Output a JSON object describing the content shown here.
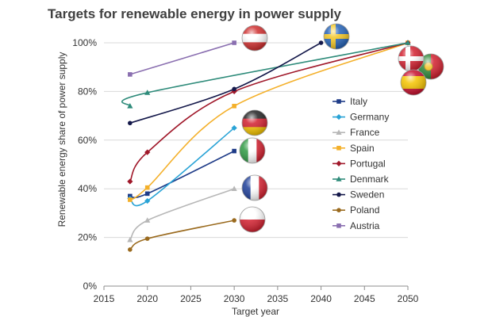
{
  "chart_data": {
    "type": "line",
    "title": "Targets for renewable energy in power supply",
    "xlabel": "Target year",
    "ylabel": "Renewable energy share of power supply",
    "xlim": [
      2015,
      2050
    ],
    "ylim": [
      0,
      100
    ],
    "x_ticks": [
      2015,
      2020,
      2025,
      2030,
      2035,
      2040,
      2045,
      2050
    ],
    "y_ticks": [
      0,
      20,
      40,
      60,
      80,
      100
    ],
    "y_tick_suffix": "%",
    "grid": "horizontal",
    "legend_position": "right",
    "series": [
      {
        "name": "Italy",
        "color": "#1f3c88",
        "marker": "square",
        "points": [
          [
            2018,
            37
          ],
          [
            2020,
            38
          ],
          [
            2030,
            55.5
          ]
        ],
        "flag": "italy-flag-icon"
      },
      {
        "name": "Germany",
        "color": "#29a3d6",
        "marker": "diamond",
        "points": [
          [
            2018,
            36
          ],
          [
            2020,
            35
          ],
          [
            2030,
            65
          ]
        ],
        "flag": "germany-flag-icon"
      },
      {
        "name": "France",
        "color": "#b7b7b7",
        "marker": "triangle",
        "points": [
          [
            2018,
            19
          ],
          [
            2020,
            27
          ],
          [
            2030,
            40
          ]
        ],
        "flag": "france-flag-icon"
      },
      {
        "name": "Spain",
        "color": "#f4b02a",
        "marker": "square",
        "points": [
          [
            2018,
            35.5
          ],
          [
            2020,
            40.5
          ],
          [
            2030,
            74
          ],
          [
            2050,
            100
          ]
        ],
        "flag": "spain-flag-icon"
      },
      {
        "name": "Portugal",
        "color": "#a0182a",
        "marker": "diamond",
        "points": [
          [
            2018,
            43
          ],
          [
            2020,
            55
          ],
          [
            2030,
            80
          ],
          [
            2050,
            100
          ]
        ],
        "flag": "portugal-flag-icon"
      },
      {
        "name": "Denmark",
        "color": "#2e8b7a",
        "marker": "triangle",
        "points": [
          [
            2018,
            74
          ],
          [
            2020,
            79.5
          ],
          [
            2050,
            100
          ]
        ],
        "flag": "denmark-flag-icon"
      },
      {
        "name": "Sweden",
        "color": "#14184a",
        "marker": "circle",
        "points": [
          [
            2018,
            67
          ],
          [
            2030,
            81
          ],
          [
            2040,
            100
          ]
        ],
        "flag": "sweden-flag-icon"
      },
      {
        "name": "Poland",
        "color": "#9a6a1e",
        "marker": "circle",
        "points": [
          [
            2018,
            15
          ],
          [
            2020,
            19.5
          ],
          [
            2030,
            27
          ]
        ],
        "flag": "poland-flag-icon"
      },
      {
        "name": "Austria",
        "color": "#8a6fb0",
        "marker": "square",
        "points": [
          [
            2018,
            87
          ],
          [
            2030,
            100
          ]
        ],
        "flag": "austria-flag-icon"
      }
    ]
  }
}
